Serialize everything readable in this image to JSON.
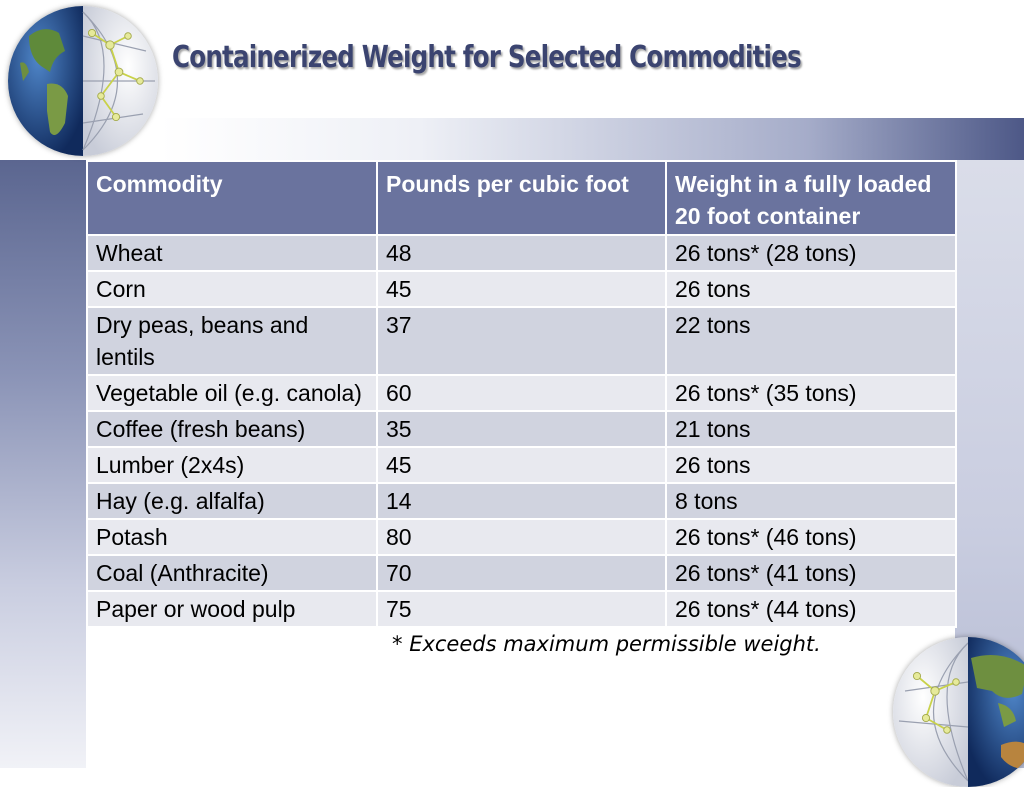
{
  "slide": {
    "title": "Containerized Weight for Selected Commodities",
    "footnote_star": "*",
    "footnote_text": "Exceeds maximum permissible weight."
  },
  "table": {
    "headers": [
      "Commodity",
      "Pounds per cubic foot",
      "Weight in a fully loaded 20 foot container"
    ],
    "rows": [
      [
        "Wheat",
        "48",
        "26 tons* (28 tons)"
      ],
      [
        "Corn",
        "45",
        "26 tons"
      ],
      [
        "Dry peas, beans and lentils",
        "37",
        "22 tons"
      ],
      [
        "Vegetable oil (e.g. canola)",
        "60",
        "26 tons* (35 tons)"
      ],
      [
        "Coffee (fresh beans)",
        "35",
        "21 tons"
      ],
      [
        "Lumber (2x4s)",
        "45",
        "26 tons"
      ],
      [
        "Hay (e.g. alfalfa)",
        "14",
        "8 tons"
      ],
      [
        "Potash",
        "80",
        "26 tons* (46 tons)"
      ],
      [
        "Coal (Anthracite)",
        "70",
        "26 tons* (41 tons)"
      ],
      [
        "Paper or wood pulp",
        "75",
        "26 tons* (44 tons)"
      ]
    ]
  },
  "colors": {
    "header_fill": "#6a739e",
    "row_odd": "#d0d3df",
    "row_even": "#e8e9ef",
    "title": "#3b4470"
  },
  "icons": [
    "globe-network-icon",
    "globe-network-icon"
  ]
}
